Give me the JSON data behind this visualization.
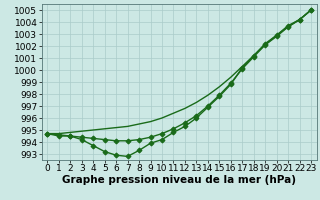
{
  "bg_color": "#cce8e4",
  "grid_color": "#aaccca",
  "line_color": "#1a6b1a",
  "line_width": 1.0,
  "marker": "D",
  "marker_size": 2.5,
  "xlabel": "Graphe pression niveau de la mer (hPa)",
  "xlabel_fontsize": 7.5,
  "tick_fontsize": 6.5,
  "ylim": [
    992.5,
    1005.5
  ],
  "xlim": [
    -0.5,
    23.5
  ],
  "yticks": [
    993,
    994,
    995,
    996,
    997,
    998,
    999,
    1000,
    1001,
    1002,
    1003,
    1004,
    1005
  ],
  "xticks": [
    0,
    1,
    2,
    3,
    4,
    5,
    6,
    7,
    8,
    9,
    10,
    11,
    12,
    13,
    14,
    15,
    16,
    17,
    18,
    19,
    20,
    21,
    22,
    23
  ],
  "line1_x": [
    0,
    1,
    2,
    3,
    4,
    5,
    6,
    7,
    8,
    9,
    10,
    11,
    12,
    13,
    14,
    15,
    16,
    17,
    18,
    19,
    20,
    21,
    22,
    23
  ],
  "line1": [
    994.7,
    994.5,
    994.5,
    994.2,
    993.7,
    993.2,
    992.9,
    992.8,
    993.3,
    993.9,
    994.2,
    994.8,
    995.3,
    996.0,
    996.9,
    997.8,
    998.8,
    1000.2,
    1001.2,
    1002.2,
    1002.9,
    1003.7,
    1004.2,
    1005.0
  ],
  "line2_x": [
    0,
    1,
    2,
    3,
    4,
    5,
    6,
    7,
    8,
    9,
    10,
    11,
    12,
    13,
    14,
    15,
    16,
    17,
    18,
    19,
    20,
    21,
    22,
    23
  ],
  "line2": [
    994.7,
    994.7,
    994.8,
    994.9,
    995.0,
    995.1,
    995.2,
    995.3,
    995.5,
    995.7,
    996.0,
    996.4,
    996.8,
    997.3,
    997.9,
    998.6,
    999.4,
    1000.3,
    1001.2,
    1002.1,
    1002.9,
    1003.6,
    1004.2,
    1005.0
  ],
  "line3_x": [
    0,
    1,
    2,
    3,
    4,
    5,
    6,
    7,
    8,
    9,
    10,
    11,
    12,
    13,
    14,
    15,
    16,
    17,
    18,
    19,
    20,
    21,
    22,
    23
  ],
  "line3": [
    994.7,
    994.6,
    994.5,
    994.4,
    994.3,
    994.2,
    994.1,
    994.1,
    994.2,
    994.4,
    994.7,
    995.1,
    995.6,
    996.2,
    997.0,
    997.9,
    998.9,
    1000.1,
    1001.1,
    1002.1,
    1002.8,
    1003.6,
    1004.2,
    1005.0
  ]
}
